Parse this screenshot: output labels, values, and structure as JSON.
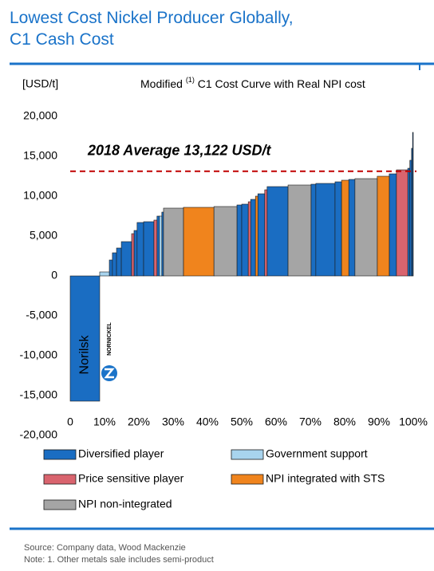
{
  "chart_data": {
    "type": "cost-curve",
    "title": [
      "Lowest Cost Nickel Producer Globally,",
      "C1 Cash Cost"
    ],
    "y_label": "[USD/t]",
    "subtitle": "Modified",
    "subtitle_note": "(1)",
    "subtitle_rest": "C1 Cost Curve with Real NPI cost",
    "xlim": [
      0,
      100
    ],
    "xticks": [
      0,
      {
        "value": 10,
        "label": "10%"
      },
      {
        "value": 20,
        "label": "20%"
      },
      {
        "value": 30,
        "label": "30%"
      },
      {
        "value": 40,
        "label": "40%"
      },
      {
        "value": 50,
        "label": "50%"
      },
      {
        "value": 60,
        "label": "60%"
      },
      {
        "value": 70,
        "label": "70%"
      },
      {
        "value": 80,
        "label": "80%"
      },
      {
        "value": 90,
        "label": "90%"
      },
      {
        "value": 100,
        "label": "100%"
      }
    ],
    "ylim": [
      -20000,
      20000
    ],
    "yticks": [
      {
        "value": 20000,
        "label": "20,000"
      },
      {
        "value": 15000,
        "label": "15,000"
      },
      {
        "value": 10000,
        "label": "10,000"
      },
      {
        "value": 5000,
        "label": "5,000"
      },
      0,
      {
        "value": -5000,
        "label": "-5,000"
      },
      {
        "value": -10000,
        "label": "-10,000"
      },
      {
        "value": -15000,
        "label": "-15,000"
      },
      {
        "value": -20000,
        "label": "-20,000"
      }
    ],
    "average": {
      "value": 13122,
      "label": "2018 Average 13,122 USD/t",
      "color": "#c00000"
    },
    "highlight_label": "Norilsk",
    "logo_text": "NORNICKEL",
    "series": [
      {
        "name": "Diversified player",
        "color": "#1a6dc2",
        "x0": [
          0,
          11.4,
          12.3,
          13.5,
          14.9,
          18.6,
          19.5,
          21.4,
          25.3,
          26.7,
          48.6,
          50.0,
          52.6,
          54.7,
          57.4,
          70.2,
          71.6,
          77.2,
          81.2,
          93.0,
          98.4,
          99.0,
          99.5,
          99.8
        ],
        "x1": [
          8.6,
          12.3,
          13.5,
          14.9,
          17.9,
          19.5,
          21.4,
          24.4,
          26.0,
          27.2,
          50.0,
          51.9,
          54.0,
          56.7,
          63.5,
          71.6,
          77.2,
          79.1,
          83.0,
          95.1,
          99.0,
          99.5,
          99.8,
          100
        ],
        "values": [
          -15700,
          2000,
          2900,
          3500,
          4300,
          5700,
          6700,
          6800,
          7500,
          8000,
          8900,
          9000,
          9600,
          10300,
          11200,
          11500,
          11600,
          11800,
          12100,
          12800,
          13500,
          14500,
          16000,
          18000
        ]
      },
      {
        "name": "Government support",
        "color": "#a8d4ee",
        "x0": [
          8.6,
          26.0
        ],
        "x1": [
          11.4,
          26.7
        ],
        "values": [
          500,
          7500
        ]
      },
      {
        "name": "Price sensitive player",
        "color": "#d9646e",
        "x0": [
          17.9,
          24.4,
          51.9,
          56.7,
          95.1
        ],
        "x1": [
          18.6,
          25.3,
          52.6,
          57.4,
          98.4
        ],
        "values": [
          5300,
          7000,
          9300,
          10800,
          13300
        ]
      },
      {
        "name": "NPI integrated with STS",
        "color": "#f0841d",
        "x0": [
          33.0,
          54.0,
          79.1,
          89.5
        ],
        "x1": [
          41.9,
          54.7,
          81.2,
          93.0
        ],
        "values": [
          8600,
          10000,
          12000,
          12500
        ]
      },
      {
        "name": "NPI non-integrated",
        "color": "#a5a5a5",
        "x0": [
          27.2,
          41.9,
          63.5,
          83.0
        ],
        "x1": [
          33.0,
          48.6,
          70.2,
          89.5
        ],
        "values": [
          8500,
          8700,
          11400,
          12200
        ]
      }
    ]
  },
  "source": [
    "Source: Company data, Wood Mackenzie",
    "Note: 1. Other metals sale includes semi-product"
  ]
}
